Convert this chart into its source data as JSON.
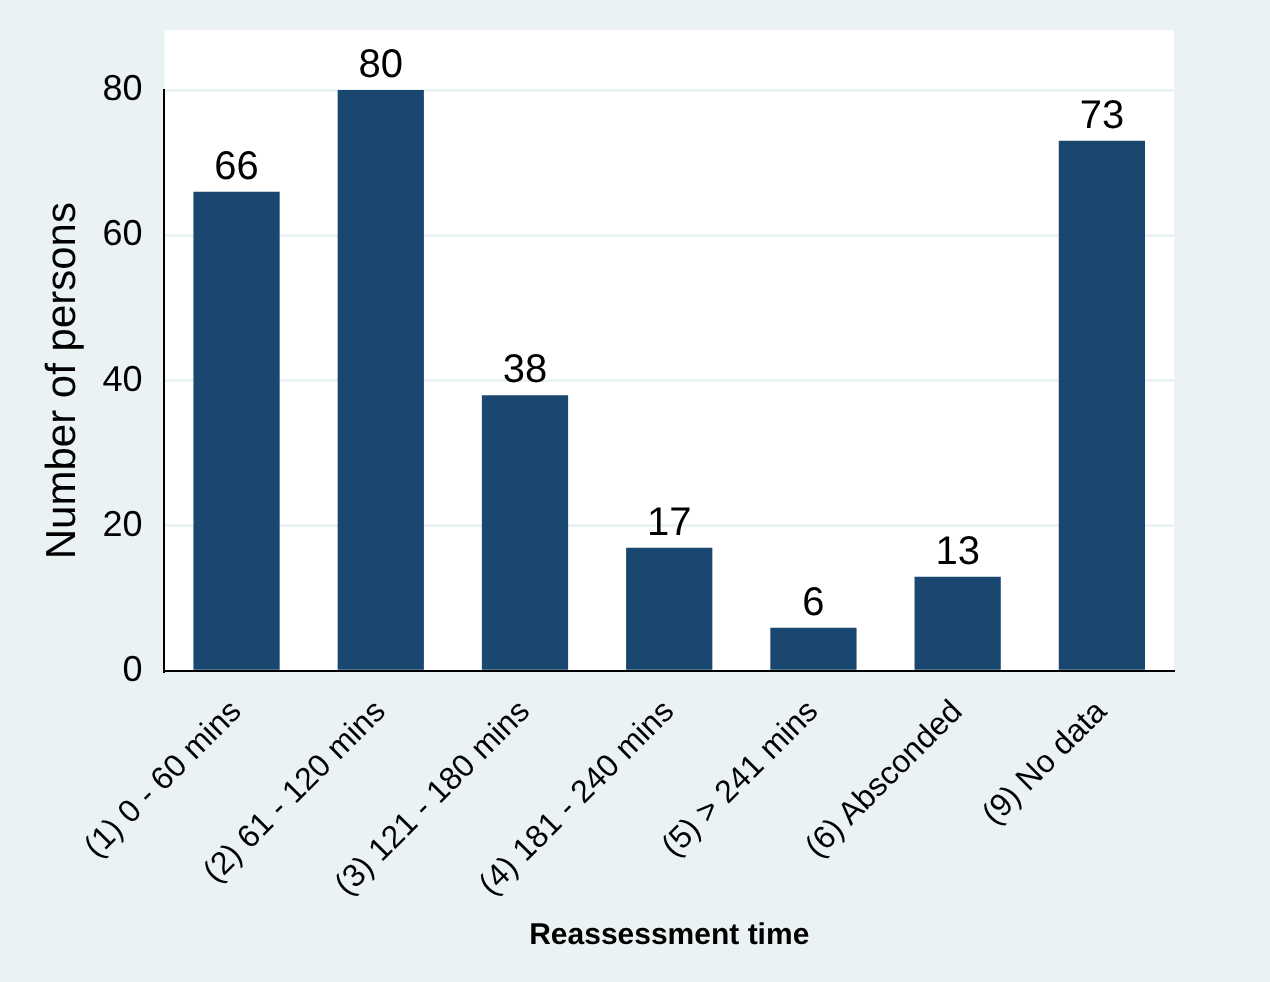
{
  "chart_data": {
    "type": "bar",
    "xlabel": "Reassessment time",
    "ylabel": "Number of persons",
    "categories": [
      "(1) 0 - 60 mins",
      "(2) 61 - 120 mins",
      "(3) 121 - 180 mins",
      "(4) 181 - 240 mins",
      "(5) > 241 mins",
      "(6) Absconded",
      "(9) No data"
    ],
    "values": [
      66,
      80,
      38,
      17,
      6,
      13,
      73
    ],
    "color": "#1a476f",
    "ylim": [
      0,
      80
    ],
    "yticks": [
      0,
      20,
      40,
      60,
      80
    ],
    "grid": "y",
    "data_labels": true
  }
}
